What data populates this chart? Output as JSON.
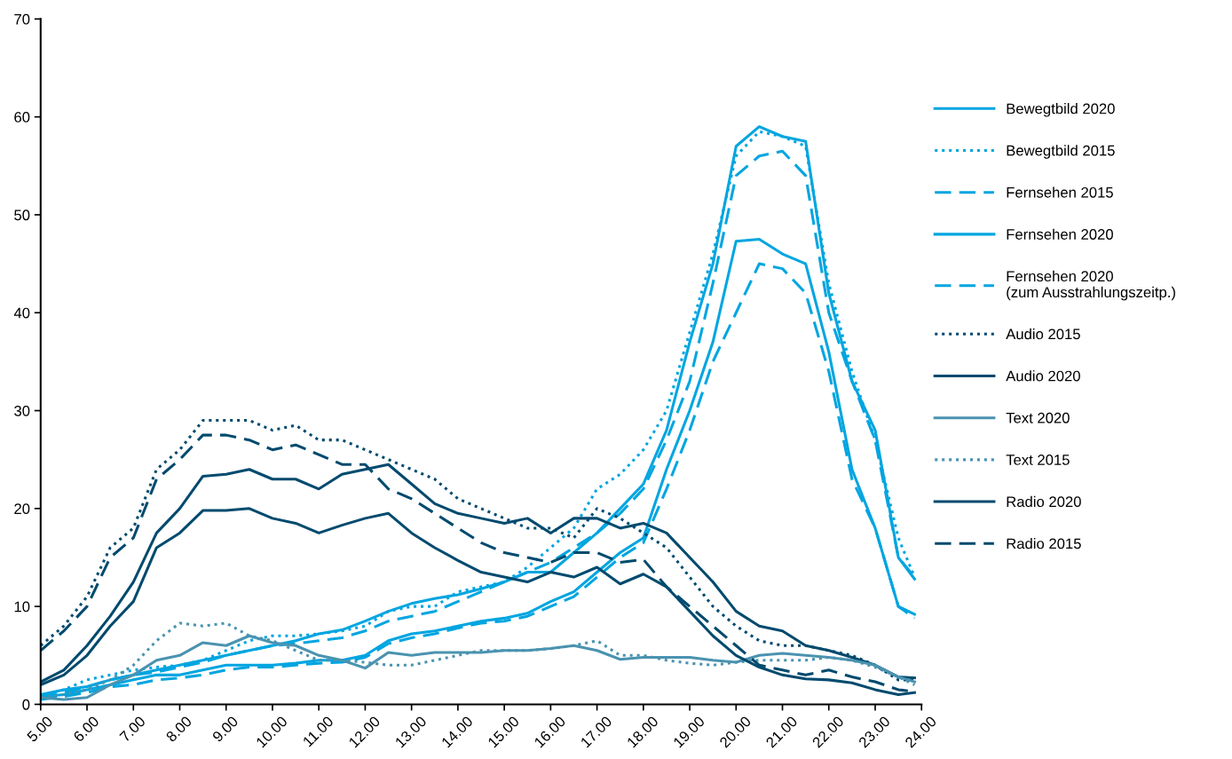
{
  "chart_data": {
    "type": "line",
    "xlim": [
      5,
      24
    ],
    "ylim": [
      0,
      70
    ],
    "xticks": [
      {
        "value": 5,
        "label": "5.00"
      },
      {
        "value": 6,
        "label": "6.00"
      },
      {
        "value": 7,
        "label": "7.00"
      },
      {
        "value": 8,
        "label": "8.00"
      },
      {
        "value": 9,
        "label": "9.00"
      },
      {
        "value": 10,
        "label": "10.00"
      },
      {
        "value": 11,
        "label": "11.00"
      },
      {
        "value": 12,
        "label": "12.00"
      },
      {
        "value": 13,
        "label": "13.00"
      },
      {
        "value": 14,
        "label": "14.00"
      },
      {
        "value": 15,
        "label": "15.00"
      },
      {
        "value": 16,
        "label": "16.00"
      },
      {
        "value": 17,
        "label": "17.00"
      },
      {
        "value": 18,
        "label": "18.00"
      },
      {
        "value": 19,
        "label": "19.00"
      },
      {
        "value": 20,
        "label": "20.00"
      },
      {
        "value": 21,
        "label": "21.00"
      },
      {
        "value": 22,
        "label": "22.00"
      },
      {
        "value": 23,
        "label": "23.00"
      },
      {
        "value": 24,
        "label": "24.00"
      }
    ],
    "yticks": [
      0,
      10,
      20,
      30,
      40,
      50,
      60,
      70
    ],
    "grid": false,
    "legend": "right",
    "marker": "none",
    "x": [
      5,
      5.5,
      6,
      6.5,
      7,
      7.5,
      8,
      8.5,
      9,
      9.5,
      10,
      10.5,
      11,
      11.5,
      12,
      12.5,
      13,
      13.5,
      14,
      14.5,
      15,
      15.5,
      16,
      16.5,
      17,
      17.5,
      18,
      18.5,
      19,
      19.5,
      20,
      20.5,
      21,
      21.5,
      22,
      22.5,
      23,
      23.5,
      23.85
    ],
    "series": [
      {
        "name": "Bewegtbild 2020",
        "color": "#00a5e0",
        "line_style": "solid",
        "values": [
          1.0,
          1.5,
          1.8,
          2.5,
          3.0,
          3.5,
          4.0,
          4.5,
          5.0,
          5.5,
          6.0,
          6.5,
          7.2,
          7.6,
          8.5,
          9.5,
          10.3,
          10.8,
          11.2,
          11.8,
          12.5,
          13.5,
          13.5,
          15.5,
          17.5,
          20,
          22.5,
          28,
          37,
          45,
          57,
          59,
          58,
          57.5,
          42,
          33,
          28,
          15,
          12.8
        ]
      },
      {
        "name": "Bewegtbild 2015",
        "color": "#00a5e0",
        "line_style": "dotted",
        "values": [
          0.8,
          1.5,
          2.5,
          3,
          3.5,
          3.8,
          4,
          4.5,
          5.5,
          6.5,
          7,
          7,
          7.2,
          7.5,
          8,
          9.5,
          10,
          10,
          11.5,
          12,
          12.5,
          14,
          16,
          18,
          22,
          23.5,
          26,
          30,
          38,
          46,
          56,
          58.5,
          58,
          57,
          43,
          34,
          27,
          17,
          13
        ]
      },
      {
        "name": "Fernsehen 2015",
        "color": "#00a5e0",
        "line_style": "dashed",
        "values": [
          0.8,
          1.2,
          1.8,
          2.5,
          3,
          3.3,
          3.8,
          4.3,
          5,
          5.5,
          6,
          6.2,
          6.5,
          6.8,
          7.5,
          8.5,
          9,
          9.5,
          10.5,
          11.5,
          12.5,
          13.5,
          14.5,
          16,
          17.5,
          19.5,
          22,
          27,
          33,
          43,
          54,
          56,
          56.5,
          54,
          40,
          33,
          27,
          15,
          13
        ]
      },
      {
        "name": "Fernsehen 2020",
        "color": "#00a5e0",
        "line_style": "solid",
        "values": [
          0.8,
          1,
          1.5,
          2,
          2.5,
          3,
          3,
          3.5,
          4,
          4,
          4,
          4.2,
          4.5,
          4.5,
          5,
          6.5,
          7.2,
          7.5,
          8,
          8.5,
          8.8,
          9.3,
          10.5,
          11.5,
          13.5,
          15.5,
          17,
          24,
          30,
          37,
          47.3,
          47.5,
          46,
          45,
          36,
          24,
          18,
          10,
          9.2
        ]
      },
      {
        "name": "Fernsehen 2020\n(zum Ausstrahlungszeitp.)",
        "color": "#00a5e0",
        "line_style": "dashed",
        "values": [
          0.5,
          0.8,
          1.2,
          1.8,
          2,
          2.5,
          2.7,
          3,
          3.5,
          3.8,
          3.8,
          4,
          4.2,
          4.3,
          4.8,
          6.2,
          6.8,
          7.2,
          7.8,
          8.3,
          8.5,
          9,
          10,
          11,
          13,
          15,
          16.5,
          22,
          28,
          35,
          40,
          45,
          44.5,
          42,
          34,
          23,
          18,
          10,
          8.8
        ]
      },
      {
        "name": "Audio 2015",
        "color": "#004a6e",
        "line_style": "dotted",
        "values": [
          6,
          8,
          11,
          16,
          18,
          24,
          26,
          29,
          29,
          29,
          28,
          28.5,
          27,
          27,
          26,
          25,
          24,
          23,
          21,
          20,
          19,
          18,
          18,
          17,
          20,
          19,
          17.5,
          16,
          13,
          10,
          8,
          6.5,
          6,
          6,
          5.5,
          5,
          4,
          2.5,
          2.5
        ]
      },
      {
        "name": "Audio 2020",
        "color": "#004a6e",
        "line_style": "solid",
        "values": [
          2.3,
          3.5,
          6,
          9,
          12.5,
          17.5,
          20,
          23.3,
          23.5,
          24,
          23,
          23,
          22,
          23.5,
          24,
          24.5,
          22.5,
          20.5,
          19.5,
          19,
          18.5,
          19,
          17.5,
          19,
          19,
          18,
          18.5,
          17.5,
          15,
          12.5,
          9.5,
          8,
          7.5,
          6,
          5.5,
          4.8,
          4,
          2.8,
          2.7
        ]
      },
      {
        "name": "Text 2020",
        "color": "#4a93b0",
        "line_style": "solid",
        "values": [
          0.7,
          0.5,
          0.7,
          2,
          3,
          4.5,
          5,
          6.3,
          6,
          7,
          6.3,
          6,
          5,
          4.5,
          3.7,
          5.3,
          5,
          5.3,
          5.3,
          5.3,
          5.5,
          5.5,
          5.7,
          6,
          5.5,
          4.6,
          4.8,
          4.8,
          4.8,
          4.5,
          4.3,
          5,
          5.2,
          5,
          4.8,
          4.5,
          4,
          2.8,
          2.3
        ]
      },
      {
        "name": "Text 2015",
        "color": "#4a93b0",
        "line_style": "dotted",
        "values": [
          0.7,
          1,
          1.5,
          2.5,
          4,
          6.5,
          8.3,
          8,
          8.3,
          7,
          6.5,
          5.5,
          4.5,
          4.5,
          4.3,
          4,
          4,
          4.5,
          5,
          5.5,
          5.5,
          5.5,
          5.7,
          6,
          6.5,
          5,
          5,
          4.5,
          4.2,
          4,
          4.3,
          4.5,
          4.5,
          4.5,
          4.8,
          4.5,
          3.8,
          2.8,
          2
        ]
      },
      {
        "name": "Radio 2020",
        "color": "#004a6e",
        "line_style": "solid",
        "values": [
          2,
          3,
          5,
          8,
          10.5,
          16,
          17.5,
          19.8,
          19.8,
          20,
          19,
          18.5,
          17.5,
          18.3,
          19,
          19.5,
          17.5,
          16,
          14.7,
          13.5,
          13,
          12.5,
          13.5,
          13,
          14,
          12.3,
          13.3,
          12,
          9.5,
          7,
          5,
          3.8,
          3,
          2.6,
          2.5,
          2.2,
          1.5,
          1,
          1.2
        ]
      },
      {
        "name": "Radio 2015",
        "color": "#004a6e",
        "line_style": "dashed",
        "values": [
          5.5,
          7.5,
          10,
          15,
          17,
          23,
          25,
          27.5,
          27.5,
          27,
          26,
          26.5,
          25.5,
          24.5,
          24.5,
          22,
          21,
          19.5,
          18,
          16.5,
          15.5,
          15,
          14.5,
          15.5,
          15.5,
          14.5,
          14.8,
          12,
          10,
          8,
          6,
          4,
          3.5,
          3,
          3.5,
          2.8,
          2.3,
          1.5,
          1.3
        ]
      }
    ]
  }
}
